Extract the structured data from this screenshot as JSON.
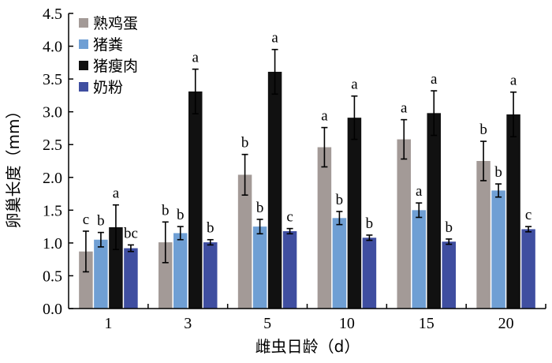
{
  "chart_data": {
    "type": "bar",
    "xlabel": "雌虫日龄（d）",
    "ylabel": "卵巢长度（mm）",
    "ylim": [
      0,
      4.5
    ],
    "yticks": [
      "0.0",
      "0.5",
      "1.0",
      "1.5",
      "2.0",
      "2.5",
      "3.0",
      "3.5",
      "4.0",
      "4.5"
    ],
    "categories": [
      "1",
      "3",
      "5",
      "10",
      "15",
      "20"
    ],
    "legend_position": "top-left",
    "grid": false,
    "series": [
      {
        "name": "熟鸡蛋",
        "color": "#a39a97",
        "values": [
          0.87,
          1.01,
          2.04,
          2.46,
          2.58,
          2.25
        ],
        "errors": [
          0.31,
          0.31,
          0.31,
          0.3,
          0.3,
          0.3
        ],
        "labels": [
          "c",
          "b",
          "b",
          "a",
          "a",
          "b"
        ]
      },
      {
        "name": "猪粪",
        "color": "#6f9fd4",
        "values": [
          1.05,
          1.15,
          1.25,
          1.38,
          1.5,
          1.8
        ],
        "errors": [
          0.11,
          0.1,
          0.11,
          0.1,
          0.11,
          0.1
        ],
        "labels": [
          "b",
          "b",
          "b",
          "b",
          "a",
          "b"
        ]
      },
      {
        "name": "猪瘦肉",
        "color": "#111111",
        "values": [
          1.24,
          3.31,
          3.61,
          2.91,
          2.98,
          2.96
        ],
        "errors": [
          0.34,
          0.34,
          0.34,
          0.33,
          0.34,
          0.34
        ],
        "labels": [
          "a",
          "a",
          "a",
          "a",
          "a",
          "a"
        ]
      },
      {
        "name": "奶粉",
        "color": "#3f4ea0",
        "values": [
          0.92,
          1.01,
          1.18,
          1.08,
          1.02,
          1.21
        ],
        "errors": [
          0.05,
          0.04,
          0.04,
          0.04,
          0.04,
          0.04
        ],
        "labels": [
          "bc",
          "b",
          "c",
          "b",
          "b",
          "c"
        ]
      }
    ]
  }
}
